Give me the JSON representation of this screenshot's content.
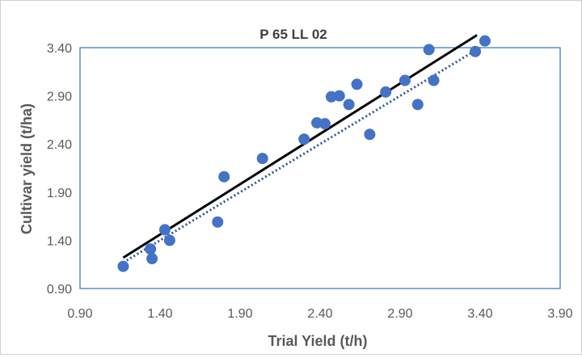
{
  "chart_data": {
    "type": "scatter",
    "title": "P 65 LL 02",
    "xlabel": "Trial Yield (t/h)",
    "ylabel": "Cultivar yield (t/ha)",
    "xlim": [
      0.9,
      3.9
    ],
    "ylim": [
      0.9,
      3.4
    ],
    "x_ticks": [
      "0.90",
      "1.40",
      "1.90",
      "2.40",
      "2.90",
      "3.40",
      "3.90"
    ],
    "y_ticks": [
      "0.90",
      "1.40",
      "1.90",
      "2.40",
      "2.90",
      "3.40"
    ],
    "grid": false,
    "legend": "none",
    "points": {
      "x": [
        1.17,
        1.34,
        1.35,
        1.43,
        1.46,
        1.76,
        1.8,
        2.04,
        2.3,
        2.38,
        2.43,
        2.47,
        2.52,
        2.58,
        2.63,
        2.71,
        2.81,
        2.93,
        3.01,
        3.08,
        3.11,
        3.37,
        3.43
      ],
      "y": [
        1.13,
        1.31,
        1.21,
        1.51,
        1.4,
        1.59,
        2.06,
        2.25,
        2.45,
        2.62,
        2.61,
        2.89,
        2.9,
        2.81,
        3.02,
        2.5,
        2.94,
        3.06,
        2.81,
        3.38,
        3.06,
        3.36,
        3.47
      ],
      "color": "#4472c4"
    },
    "fit_line": {
      "x": [
        1.17,
        3.38
      ],
      "y": [
        1.22,
        3.53
      ],
      "color": "#000000",
      "style": "solid"
    },
    "identity_line": {
      "x": [
        1.17,
        3.4
      ],
      "y": [
        1.17,
        3.4
      ],
      "color": "#2e5597",
      "style": "dotted"
    },
    "plot_border_color": "#2e75b6"
  }
}
